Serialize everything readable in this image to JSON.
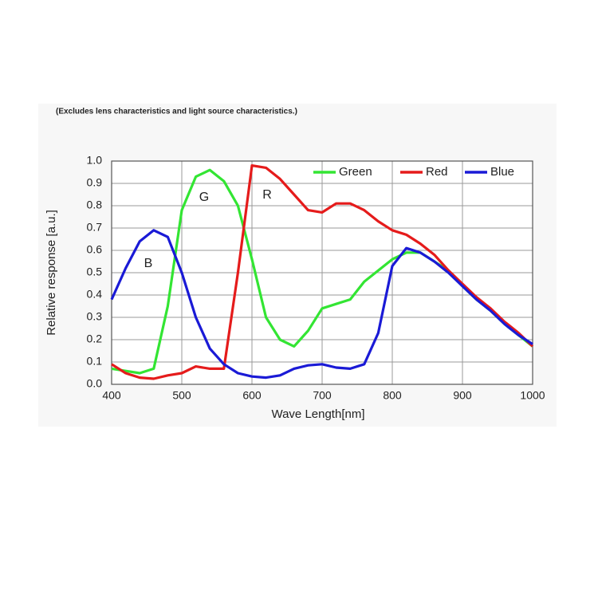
{
  "chart_data": {
    "type": "line",
    "title": "(Excludes lens characteristics and light source characteristics.)",
    "xlabel": "Wave Length[nm]",
    "ylabel": "Relative response [a.u.]",
    "x": [
      400,
      420,
      440,
      460,
      480,
      500,
      520,
      540,
      560,
      580,
      600,
      620,
      640,
      660,
      680,
      700,
      720,
      740,
      760,
      780,
      800,
      820,
      840,
      860,
      880,
      900,
      920,
      940,
      960,
      980,
      1000
    ],
    "series": [
      {
        "name": "Green",
        "color": "#33e533",
        "values": [
          0.07,
          0.06,
          0.05,
          0.07,
          0.35,
          0.78,
          0.93,
          0.96,
          0.91,
          0.8,
          0.56,
          0.3,
          0.2,
          0.17,
          0.24,
          0.34,
          0.36,
          0.38,
          0.46,
          0.51,
          0.56,
          0.59,
          0.59,
          0.55,
          0.51,
          0.44,
          0.38,
          0.33,
          0.27,
          0.22,
          0.17
        ]
      },
      {
        "name": "Red",
        "color": "#e51b1b",
        "values": [
          0.09,
          0.05,
          0.03,
          0.025,
          0.04,
          0.05,
          0.08,
          0.07,
          0.07,
          0.5,
          0.98,
          0.97,
          0.92,
          0.85,
          0.78,
          0.77,
          0.81,
          0.81,
          0.78,
          0.73,
          0.69,
          0.67,
          0.63,
          0.58,
          0.51,
          0.45,
          0.39,
          0.34,
          0.28,
          0.23,
          0.17
        ]
      },
      {
        "name": "Blue",
        "color": "#1a1ad6",
        "values": [
          0.38,
          0.52,
          0.64,
          0.69,
          0.66,
          0.5,
          0.3,
          0.16,
          0.09,
          0.05,
          0.035,
          0.03,
          0.04,
          0.07,
          0.085,
          0.09,
          0.075,
          0.07,
          0.09,
          0.23,
          0.53,
          0.61,
          0.59,
          0.55,
          0.5,
          0.44,
          0.38,
          0.33,
          0.27,
          0.22,
          0.18
        ]
      }
    ],
    "annotations": [
      "B",
      "G",
      "R"
    ],
    "xlim": [
      400,
      1000
    ],
    "xticks": [
      400,
      500,
      600,
      700,
      800,
      900,
      1000
    ],
    "ylim": [
      0,
      1
    ],
    "yticks": [
      {
        "value": 0,
        "label": "0.0"
      },
      {
        "value": 0.1,
        "label": "0.1"
      },
      {
        "value": 0.2,
        "label": "0.2"
      },
      {
        "value": 0.3,
        "label": "0.3"
      },
      {
        "value": 0.4,
        "label": "0.4"
      },
      {
        "value": 0.5,
        "label": "0.5"
      },
      {
        "value": 0.6,
        "label": "0.6"
      },
      {
        "value": 0.7,
        "label": "0.7"
      },
      {
        "value": 0.8,
        "label": "0.8"
      },
      {
        "value": 0.9,
        "label": "0.9"
      },
      {
        "value": 1,
        "label": "1.0"
      }
    ],
    "grid": true,
    "legend": "upper right"
  }
}
